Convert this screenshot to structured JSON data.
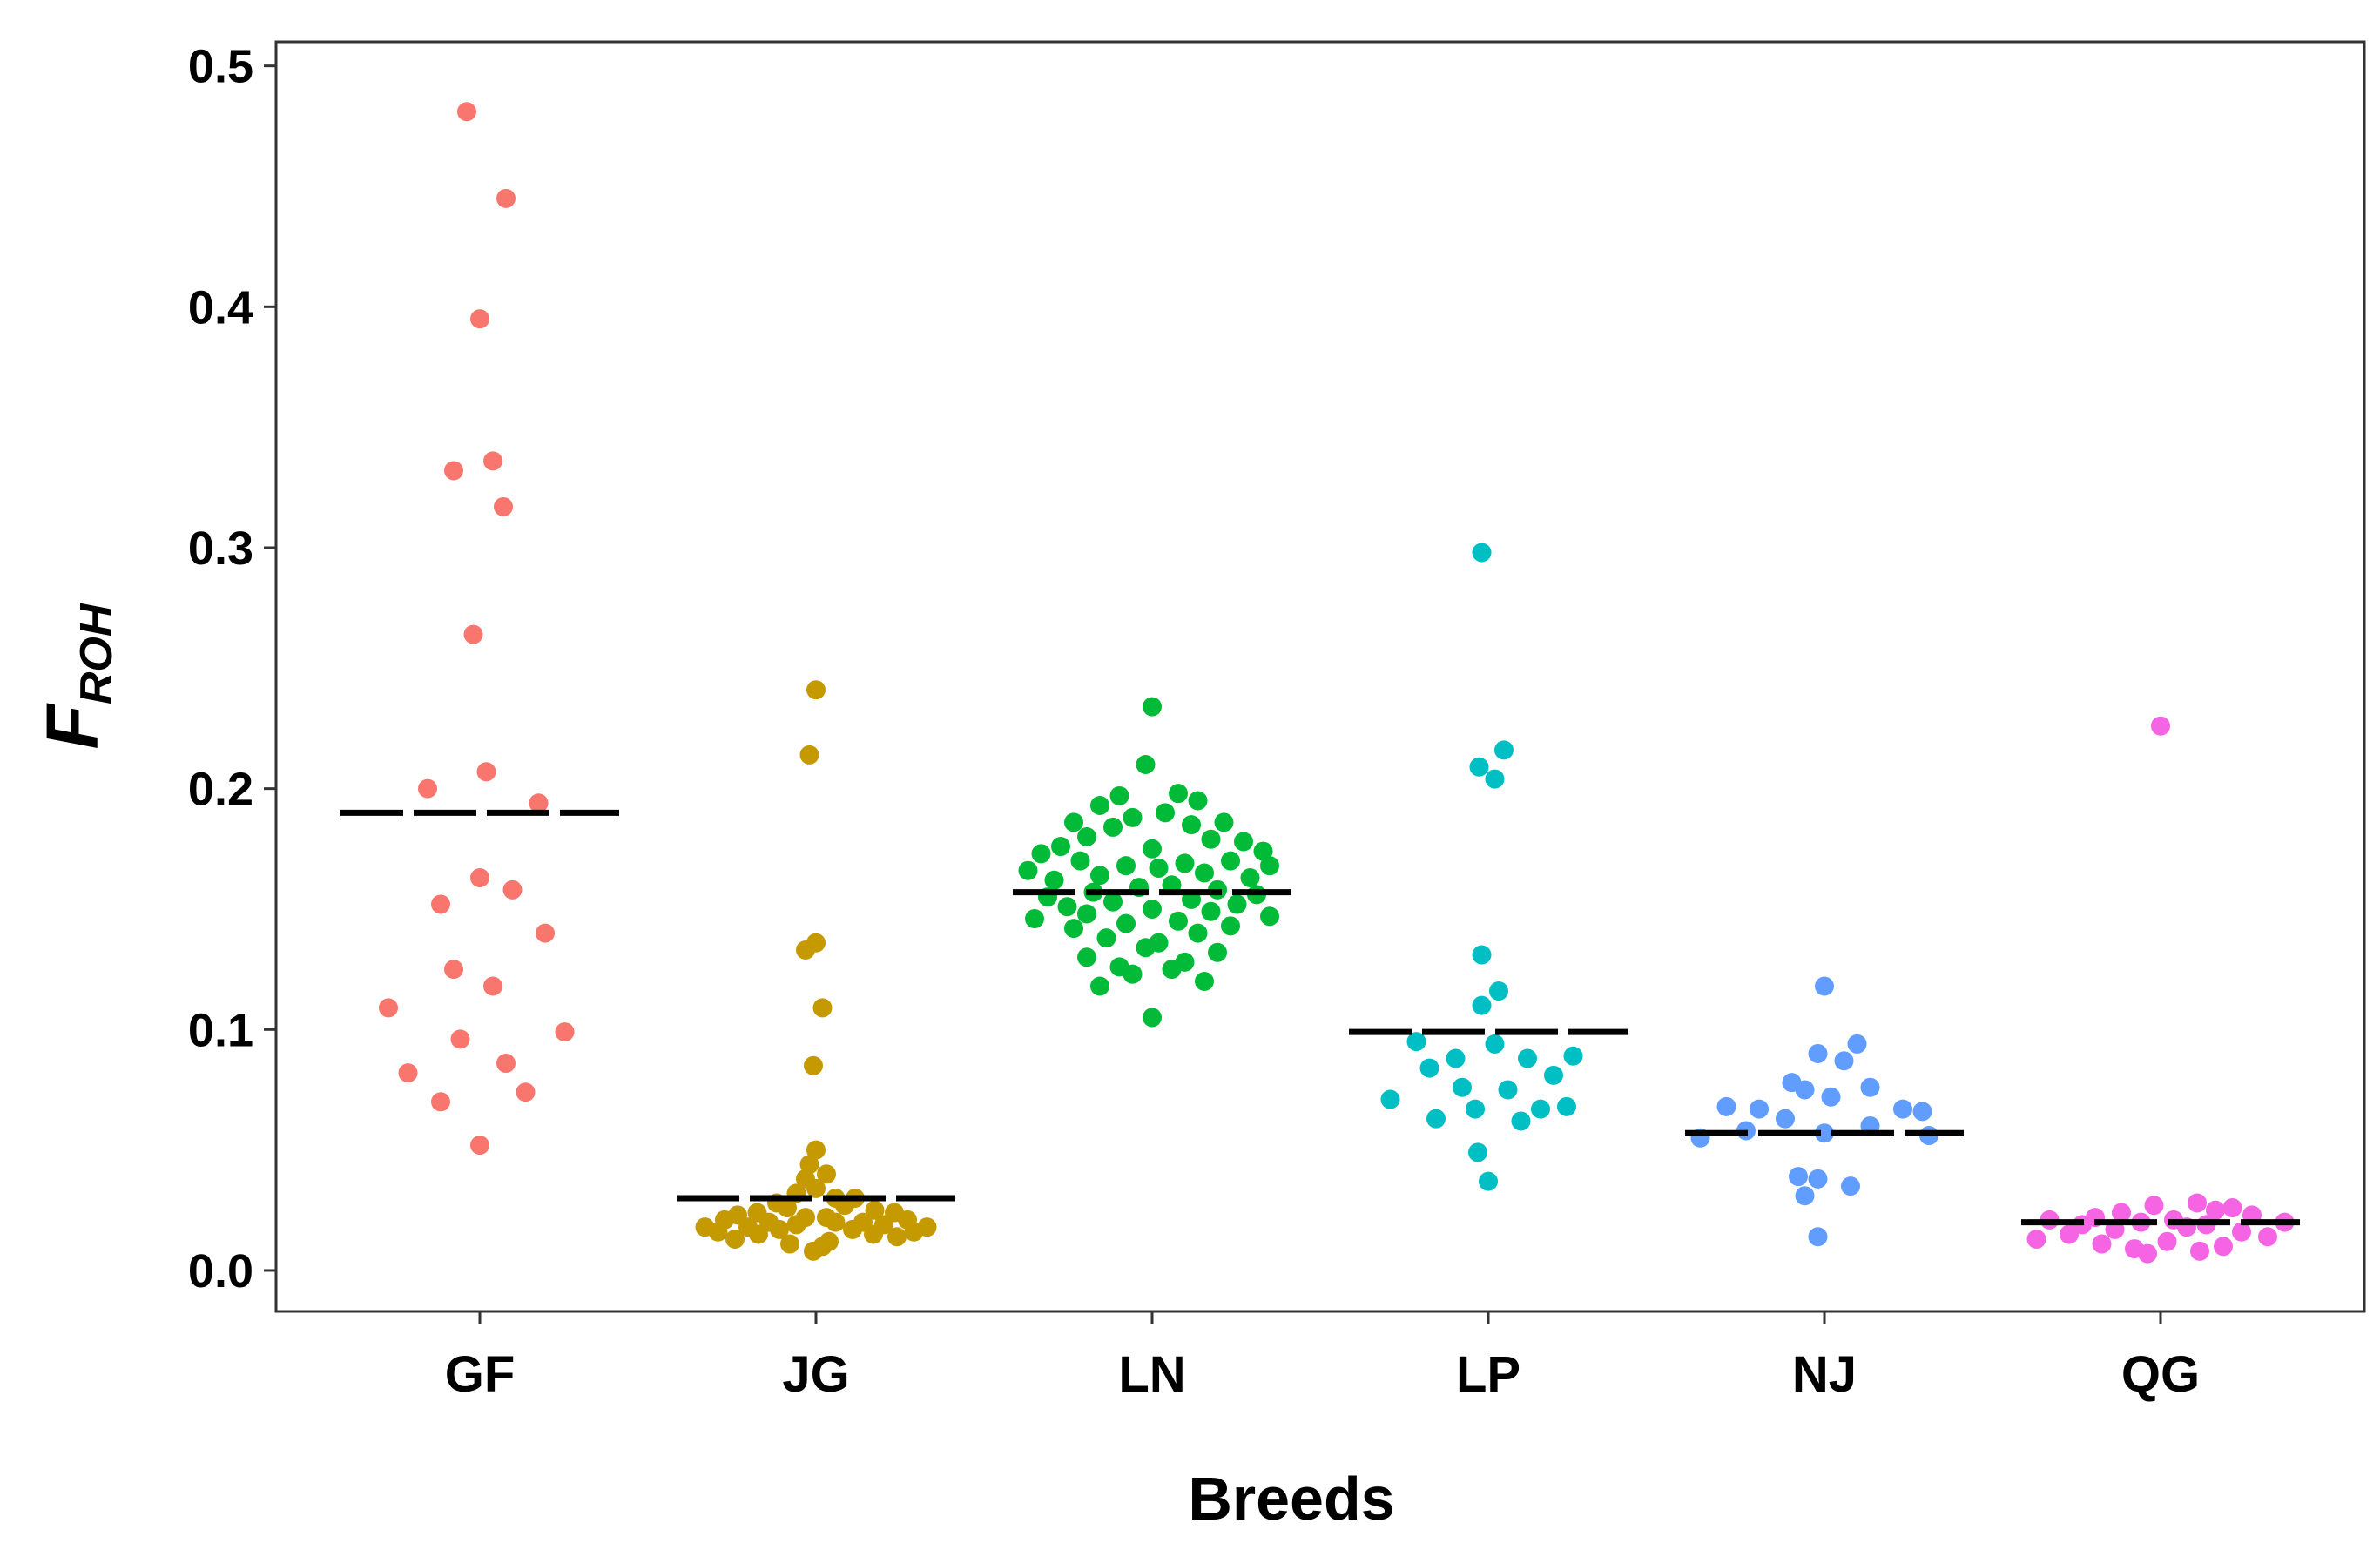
{
  "chart_data": {
    "type": "scatter",
    "subtype": "beeswarm-dot-plot-with-mean-lines",
    "title": "",
    "xlabel": "Breeds",
    "ylabel": {
      "main": "F",
      "subscript": "ROH"
    },
    "ylim": [
      -0.017,
      0.51
    ],
    "yticks": [
      "0.0",
      "0.1",
      "0.2",
      "0.3",
      "0.4",
      "0.5"
    ],
    "ytick_values": [
      0.0,
      0.1,
      0.2,
      0.3,
      0.4,
      0.5
    ],
    "categories": [
      "GF",
      "JG",
      "LN",
      "LP",
      "NJ",
      "QG"
    ],
    "grid": false,
    "legend": "none",
    "mean_line_color": "#000000",
    "series": [
      {
        "name": "GF",
        "color": "#F8766D",
        "mean": 0.19,
        "values": [
          0.481,
          0.445,
          0.395,
          0.336,
          0.332,
          0.317,
          0.264,
          0.207,
          0.2,
          0.194,
          0.163,
          0.158,
          0.152,
          0.14,
          0.125,
          0.118,
          0.109,
          0.099,
          0.096,
          0.086,
          0.082,
          0.074,
          0.07,
          0.052
        ],
        "offsets": [
          -0.1,
          0.2,
          0.0,
          0.1,
          -0.2,
          0.18,
          -0.05,
          0.05,
          -0.4,
          0.45,
          0.0,
          0.25,
          -0.3,
          0.5,
          -0.2,
          0.1,
          -0.7,
          0.65,
          -0.15,
          0.2,
          -0.55,
          0.35,
          -0.3,
          0.0
        ]
      },
      {
        "name": "JG",
        "color": "#C49A00",
        "mean": 0.03,
        "values": [
          0.241,
          0.214,
          0.136,
          0.133,
          0.109,
          0.085,
          0.05,
          0.044,
          0.04,
          0.038,
          0.034,
          0.032,
          0.03,
          0.03,
          0.028,
          0.027,
          0.026,
          0.025,
          0.024,
          0.024,
          0.023,
          0.022,
          0.022,
          0.021,
          0.021,
          0.02,
          0.02,
          0.02,
          0.019,
          0.019,
          0.018,
          0.018,
          0.018,
          0.017,
          0.017,
          0.016,
          0.016,
          0.015,
          0.015,
          0.014,
          0.013,
          0.012,
          0.011,
          0.01,
          0.008
        ],
        "offsets": [
          0.0,
          -0.05,
          0.0,
          -0.08,
          0.05,
          -0.02,
          0.0,
          -0.05,
          0.08,
          -0.08,
          0.0,
          -0.15,
          0.15,
          0.3,
          -0.3,
          0.22,
          -0.22,
          0.45,
          -0.45,
          0.6,
          -0.6,
          0.08,
          -0.08,
          0.7,
          -0.7,
          0.36,
          -0.36,
          0.15,
          -0.15,
          0.52,
          -0.52,
          0.85,
          -0.85,
          0.28,
          -0.28,
          0.75,
          -0.75,
          0.44,
          -0.44,
          0.62,
          -0.62,
          0.1,
          -0.2,
          0.05,
          -0.02
        ]
      },
      {
        "name": "LN",
        "color": "#00BA38",
        "mean": 0.157,
        "values": [
          0.234,
          0.21,
          0.198,
          0.197,
          0.195,
          0.193,
          0.19,
          0.188,
          0.186,
          0.186,
          0.185,
          0.184,
          0.18,
          0.179,
          0.178,
          0.176,
          0.175,
          0.174,
          0.173,
          0.17,
          0.17,
          0.169,
          0.168,
          0.168,
          0.167,
          0.166,
          0.165,
          0.164,
          0.163,
          0.162,
          0.16,
          0.159,
          0.158,
          0.157,
          0.156,
          0.155,
          0.154,
          0.153,
          0.152,
          0.151,
          0.15,
          0.149,
          0.148,
          0.147,
          0.146,
          0.145,
          0.144,
          0.143,
          0.142,
          0.14,
          0.138,
          0.136,
          0.134,
          0.132,
          0.13,
          0.128,
          0.126,
          0.125,
          0.123,
          0.12,
          0.118,
          0.105
        ],
        "offsets": [
          0.0,
          -0.05,
          0.2,
          -0.25,
          0.35,
          -0.4,
          0.1,
          -0.15,
          0.55,
          -0.6,
          0.3,
          -0.3,
          -0.5,
          0.45,
          0.7,
          -0.7,
          0.0,
          0.85,
          -0.85,
          0.6,
          -0.55,
          0.25,
          -0.2,
          0.9,
          0.05,
          -0.95,
          0.4,
          -0.4,
          0.75,
          -0.75,
          0.15,
          -0.1,
          0.5,
          -0.45,
          0.8,
          -0.8,
          0.3,
          -0.3,
          0.65,
          -0.65,
          0.0,
          0.45,
          -0.5,
          0.9,
          -0.9,
          0.2,
          -0.2,
          0.6,
          -0.6,
          0.35,
          -0.35,
          0.05,
          -0.05,
          0.5,
          -0.5,
          0.25,
          -0.25,
          0.15,
          -0.15,
          0.4,
          -0.4,
          0.0
        ]
      },
      {
        "name": "LP",
        "color": "#00BFC4",
        "mean": 0.099,
        "values": [
          0.298,
          0.216,
          0.209,
          0.204,
          0.131,
          0.116,
          0.11,
          0.095,
          0.094,
          0.089,
          0.088,
          0.088,
          0.084,
          0.081,
          0.076,
          0.075,
          0.071,
          0.068,
          0.067,
          0.067,
          0.063,
          0.062,
          0.049,
          0.037
        ],
        "offsets": [
          -0.05,
          0.12,
          -0.07,
          0.05,
          -0.05,
          0.08,
          -0.05,
          -0.55,
          0.05,
          0.65,
          -0.25,
          0.3,
          -0.45,
          0.5,
          -0.2,
          0.15,
          -0.75,
          0.6,
          -0.1,
          0.4,
          -0.4,
          0.25,
          -0.08,
          0.0
        ]
      },
      {
        "name": "NJ",
        "color": "#619CFF",
        "mean": 0.057,
        "values": [
          0.118,
          0.094,
          0.09,
          0.087,
          0.078,
          0.076,
          0.075,
          0.072,
          0.068,
          0.067,
          0.067,
          0.066,
          0.063,
          0.06,
          0.058,
          0.057,
          0.056,
          0.055,
          0.039,
          0.038,
          0.035,
          0.031,
          0.014
        ],
        "offsets": [
          0.0,
          0.25,
          -0.05,
          0.15,
          -0.25,
          0.35,
          -0.15,
          0.05,
          -0.75,
          0.6,
          -0.5,
          0.75,
          -0.3,
          0.35,
          -0.6,
          0.0,
          0.8,
          -0.95,
          -0.2,
          -0.05,
          0.2,
          -0.15,
          -0.05
        ]
      },
      {
        "name": "QG",
        "color": "#F564E3",
        "mean": 0.02,
        "values": [
          0.226,
          0.028,
          0.027,
          0.026,
          0.025,
          0.024,
          0.023,
          0.022,
          0.021,
          0.021,
          0.02,
          0.02,
          0.019,
          0.019,
          0.018,
          0.017,
          0.016,
          0.015,
          0.014,
          0.013,
          0.012,
          0.011,
          0.01,
          0.009,
          0.008,
          0.007
        ],
        "offsets": [
          0.0,
          0.28,
          -0.05,
          0.55,
          0.42,
          -0.3,
          0.7,
          -0.5,
          -0.85,
          0.1,
          0.95,
          -0.15,
          0.35,
          -0.6,
          0.2,
          -0.35,
          0.62,
          -0.7,
          0.82,
          -0.95,
          0.05,
          -0.45,
          0.48,
          -0.2,
          0.3,
          -0.1
        ]
      }
    ]
  }
}
